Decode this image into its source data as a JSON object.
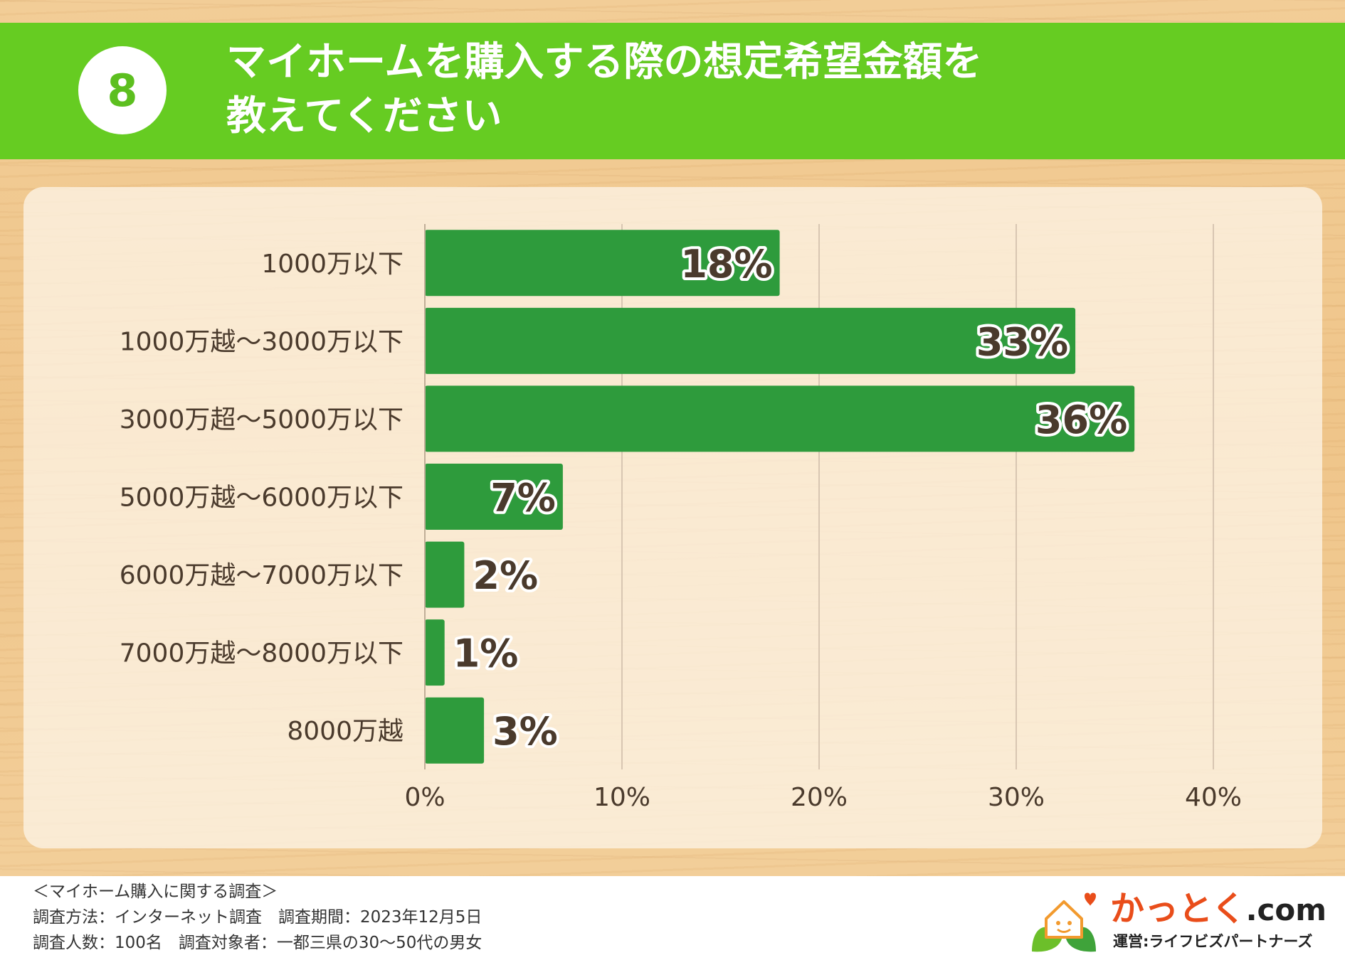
{
  "question": {
    "number": "8",
    "title_line1": "マイホームを購入する際の想定希望金額を",
    "title_line2": "教えてください"
  },
  "colors": {
    "banner": "#66cc22",
    "bar": "#2e9b3c",
    "label_text": "#4a3a2c",
    "grid": "#d8c6b2"
  },
  "chart_data": {
    "type": "bar",
    "orientation": "horizontal",
    "categories": [
      "1000万以下",
      "1000万越〜3000万以下",
      "3000万超〜5000万以下",
      "5000万越〜6000万以下",
      "6000万越〜7000万以下",
      "7000万越〜8000万以下",
      "8000万越"
    ],
    "values": [
      18,
      33,
      36,
      7,
      2,
      1,
      3
    ],
    "value_labels": [
      "18%",
      "33%",
      "36%",
      "7%",
      "2%",
      "1%",
      "3%"
    ],
    "xlim": [
      0,
      40
    ],
    "xticks": [
      "0%",
      "10%",
      "20%",
      "30%",
      "40%"
    ],
    "grid": true
  },
  "footer": {
    "note_title": "＜マイホーム購入に関する調査＞",
    "note_line1": "調査方法：インターネット調査　調査期間：2023年12月5日",
    "note_line2": "調査人数：100名　調査対象者：一都三県の30〜50代の男女"
  },
  "logo": {
    "name": "かっとく",
    "suffix": ".com",
    "operator": "運営:ライフビズパートナーズ",
    "icon": "house-leaf-icon"
  }
}
